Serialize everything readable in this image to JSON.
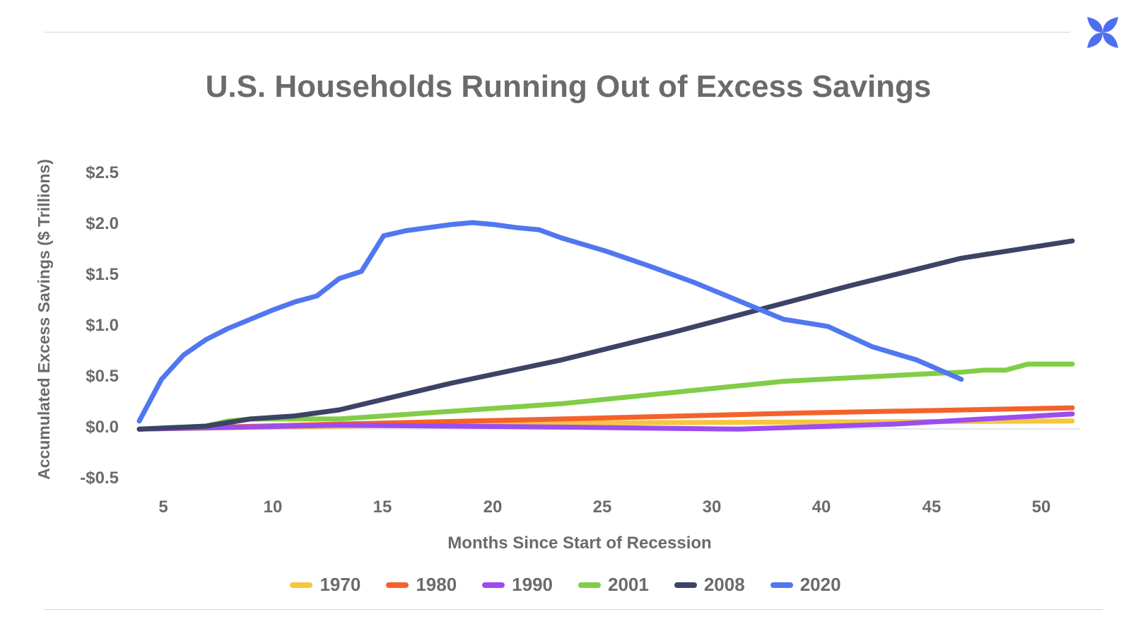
{
  "colors": {
    "accent": "#4e6ef2",
    "text": "#6b6b6b",
    "1970": "#f7c541",
    "1980": "#f4622b",
    "1990": "#9b4df0",
    "2001": "#82cd47",
    "2008": "#3c4366",
    "2020": "#5177f0"
  },
  "logo": {
    "icon": "x-petal-logo-icon"
  },
  "chart_data": {
    "type": "line",
    "title": "U.S. Households Running Out of Excess Savings",
    "xlabel": "Months Since Start of Recession",
    "ylabel": "Accumulated Excess Savings ($ Trillions)",
    "ylim": [
      -0.5,
      2.5
    ],
    "y_ticks": [
      {
        "value": 2.5,
        "label": "$2.5"
      },
      {
        "value": 2.0,
        "label": "$2.0"
      },
      {
        "value": 1.5,
        "label": "$1.5"
      },
      {
        "value": 1.0,
        "label": "$1.0"
      },
      {
        "value": 0.5,
        "label": "$0.5"
      },
      {
        "value": 0.0,
        "label": "$0.0"
      },
      {
        "value": -0.5,
        "label": "-$0.5"
      }
    ],
    "x_ticks": [
      "5",
      "10",
      "15",
      "20",
      "25",
      "30",
      "40",
      "45",
      "50"
    ],
    "x_categories_count": 43,
    "grid": false,
    "legend": "bottom",
    "series": [
      {
        "name": "1970",
        "color": "#f7c541",
        "points": [
          [
            1,
            -0.03
          ],
          [
            10,
            0.0
          ],
          [
            20,
            0.03
          ],
          [
            31,
            0.04
          ],
          [
            43,
            0.05
          ]
        ]
      },
      {
        "name": "1980",
        "color": "#f4622b",
        "points": [
          [
            1,
            -0.03
          ],
          [
            10,
            0.02
          ],
          [
            20,
            0.07
          ],
          [
            31,
            0.13
          ],
          [
            43,
            0.18
          ]
        ]
      },
      {
        "name": "1990",
        "color": "#9b4df0",
        "points": [
          [
            1,
            -0.03
          ],
          [
            10,
            0.01
          ],
          [
            20,
            -0.01
          ],
          [
            28,
            -0.03
          ],
          [
            35,
            0.02
          ],
          [
            43,
            0.12
          ]
        ]
      },
      {
        "name": "2001",
        "color": "#82cd47",
        "points": [
          [
            1,
            -0.03
          ],
          [
            4,
            0.0
          ],
          [
            5,
            0.05
          ],
          [
            6,
            0.07
          ],
          [
            10,
            0.07
          ],
          [
            20,
            0.22
          ],
          [
            30,
            0.44
          ],
          [
            37,
            0.52
          ],
          [
            38,
            0.53
          ],
          [
            39,
            0.55
          ],
          [
            40,
            0.55
          ],
          [
            41,
            0.61
          ],
          [
            43,
            0.61
          ]
        ]
      },
      {
        "name": "2008",
        "color": "#3c4366",
        "points": [
          [
            1,
            -0.03
          ],
          [
            4,
            0.0
          ],
          [
            6,
            0.07
          ],
          [
            8,
            0.1
          ],
          [
            10,
            0.16
          ],
          [
            15,
            0.42
          ],
          [
            20,
            0.65
          ],
          [
            25,
            0.92
          ],
          [
            29,
            1.15
          ],
          [
            33,
            1.38
          ],
          [
            38,
            1.65
          ],
          [
            43,
            1.82
          ]
        ]
      },
      {
        "name": "2020",
        "color": "#5177f0",
        "points": [
          [
            1,
            0.05
          ],
          [
            2,
            0.46
          ],
          [
            3,
            0.7
          ],
          [
            4,
            0.85
          ],
          [
            5,
            0.96
          ],
          [
            6,
            1.05
          ],
          [
            7,
            1.14
          ],
          [
            8,
            1.22
          ],
          [
            9,
            1.28
          ],
          [
            10,
            1.45
          ],
          [
            11,
            1.52
          ],
          [
            12,
            1.87
          ],
          [
            13,
            1.92
          ],
          [
            14,
            1.95
          ],
          [
            15,
            1.98
          ],
          [
            16,
            2.0
          ],
          [
            17,
            1.98
          ],
          [
            18,
            1.95
          ],
          [
            19,
            1.93
          ],
          [
            20,
            1.85
          ],
          [
            22,
            1.72
          ],
          [
            24,
            1.57
          ],
          [
            26,
            1.41
          ],
          [
            28,
            1.23
          ],
          [
            30,
            1.05
          ],
          [
            32,
            0.98
          ],
          [
            34,
            0.78
          ],
          [
            36,
            0.65
          ],
          [
            38,
            0.46
          ]
        ]
      }
    ]
  }
}
